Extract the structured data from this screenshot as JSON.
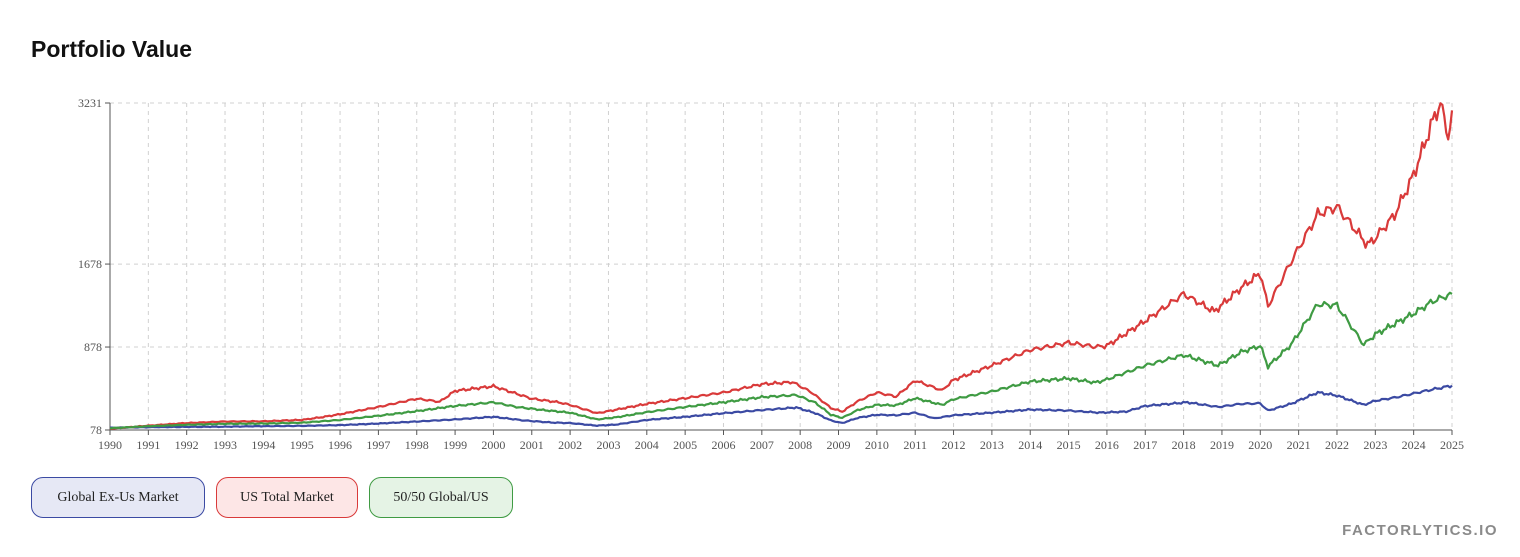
{
  "title": "Portfolio Value",
  "brand": "FACTORLYTICS.IO",
  "colors": {
    "grid": "#d0d0d0",
    "axis": "#555555"
  },
  "legend": [
    {
      "label": "Global Ex-Us Market",
      "border": "#3b4aa3",
      "fill": "#e6e8f5"
    },
    {
      "label": "US Total Market",
      "border": "#d93a3a",
      "fill": "#fde6e6"
    },
    {
      "label": "50/50 Global/US",
      "border": "#3f9b43",
      "fill": "#e5f3e5"
    }
  ],
  "chart_data": {
    "type": "line",
    "title": "Portfolio Value",
    "xlabel": "",
    "ylabel": "",
    "xlim": [
      1990,
      2025
    ],
    "ylim": [
      78,
      3231
    ],
    "grid": true,
    "legend_position": "bottom-left",
    "x_ticks": [
      "1990",
      "1991",
      "1992",
      "1993",
      "1994",
      "1995",
      "1996",
      "1997",
      "1998",
      "1999",
      "2000",
      "2001",
      "2002",
      "2003",
      "2004",
      "2005",
      "2006",
      "2007",
      "2008",
      "2009",
      "2010",
      "2011",
      "2012",
      "2013",
      "2014",
      "2015",
      "2016",
      "2017",
      "2018",
      "2019",
      "2020",
      "2021",
      "2022",
      "2023",
      "2024",
      "2025"
    ],
    "y_ticks": [
      78,
      878,
      1678,
      3231
    ],
    "series": [
      {
        "name": "Global Ex-Us Market",
        "color": "#3b4aa3",
        "points": [
          [
            1990,
            100
          ],
          [
            1991,
            105
          ],
          [
            1992,
            108
          ],
          [
            1993,
            110
          ],
          [
            1994,
            115
          ],
          [
            1995,
            118
          ],
          [
            1996,
            125
          ],
          [
            1997,
            140
          ],
          [
            1998,
            160
          ],
          [
            1999,
            180
          ],
          [
            2000,
            205
          ],
          [
            2000.8,
            170
          ],
          [
            2001.5,
            150
          ],
          [
            2002,
            145
          ],
          [
            2002.7,
            120
          ],
          [
            2003.2,
            130
          ],
          [
            2004,
            175
          ],
          [
            2005,
            205
          ],
          [
            2006,
            240
          ],
          [
            2007,
            270
          ],
          [
            2007.9,
            295
          ],
          [
            2008.4,
            240
          ],
          [
            2008.8,
            170
          ],
          [
            2009.1,
            145
          ],
          [
            2009.5,
            195
          ],
          [
            2010,
            225
          ],
          [
            2010.5,
            220
          ],
          [
            2011,
            245
          ],
          [
            2011.5,
            190
          ],
          [
            2012,
            220
          ],
          [
            2013,
            245
          ],
          [
            2014,
            275
          ],
          [
            2015,
            265
          ],
          [
            2015.8,
            245
          ],
          [
            2016.5,
            255
          ],
          [
            2017,
            310
          ],
          [
            2018.1,
            345
          ],
          [
            2018.9,
            300
          ],
          [
            2019.5,
            330
          ],
          [
            2020,
            335
          ],
          [
            2020.2,
            265
          ],
          [
            2020.8,
            330
          ],
          [
            2021.5,
            440
          ],
          [
            2022,
            410
          ],
          [
            2022.7,
            320
          ],
          [
            2023,
            360
          ],
          [
            2023.5,
            390
          ],
          [
            2024,
            430
          ],
          [
            2024.5,
            470
          ],
          [
            2025,
            505
          ]
        ]
      },
      {
        "name": "US Total Market",
        "color": "#d93a3a",
        "points": [
          [
            1990,
            90
          ],
          [
            1991,
            120
          ],
          [
            1992,
            145
          ],
          [
            1993,
            160
          ],
          [
            1994,
            162
          ],
          [
            1995,
            175
          ],
          [
            1995.5,
            200
          ],
          [
            1996,
            230
          ],
          [
            1997,
            300
          ],
          [
            1998,
            380
          ],
          [
            1998.6,
            350
          ],
          [
            1999,
            455
          ],
          [
            2000,
            500
          ],
          [
            2000.5,
            440
          ],
          [
            2001,
            380
          ],
          [
            2001.7,
            345
          ],
          [
            2002,
            320
          ],
          [
            2002.7,
            240
          ],
          [
            2003,
            260
          ],
          [
            2004,
            330
          ],
          [
            2005,
            385
          ],
          [
            2006,
            440
          ],
          [
            2007,
            520
          ],
          [
            2007.8,
            540
          ],
          [
            2008.3,
            440
          ],
          [
            2008.8,
            290
          ],
          [
            2009.1,
            255
          ],
          [
            2009.5,
            355
          ],
          [
            2010,
            440
          ],
          [
            2010.5,
            400
          ],
          [
            2011,
            555
          ],
          [
            2011.7,
            460
          ],
          [
            2012,
            560
          ],
          [
            2013,
            700
          ],
          [
            2014,
            850
          ],
          [
            2015,
            920
          ],
          [
            2015.7,
            880
          ],
          [
            2016,
            890
          ],
          [
            2017,
            1130
          ],
          [
            2018,
            1390
          ],
          [
            2018.8,
            1220
          ],
          [
            2019.5,
            1450
          ],
          [
            2020,
            1590
          ],
          [
            2020.2,
            1270
          ],
          [
            2020.8,
            1700
          ],
          [
            2021.5,
            2160
          ],
          [
            2022,
            2230
          ],
          [
            2022.8,
            1860
          ],
          [
            2023,
            1930
          ],
          [
            2023.5,
            2150
          ],
          [
            2024,
            2540
          ],
          [
            2024.5,
            3060
          ],
          [
            2024.7,
            3231
          ],
          [
            2024.9,
            2910
          ],
          [
            2025,
            3160
          ]
        ]
      },
      {
        "name": "50/50 Global/US",
        "color": "#3f9b43",
        "points": [
          [
            1990,
            95
          ],
          [
            1991,
            115
          ],
          [
            1992,
            128
          ],
          [
            1993,
            138
          ],
          [
            1994,
            140
          ],
          [
            1995,
            148
          ],
          [
            1996,
            175
          ],
          [
            1997,
            215
          ],
          [
            1998,
            260
          ],
          [
            1999,
            310
          ],
          [
            2000,
            345
          ],
          [
            2000.6,
            300
          ],
          [
            2001.3,
            270
          ],
          [
            2002,
            245
          ],
          [
            2002.7,
            180
          ],
          [
            2003.2,
            200
          ],
          [
            2004,
            250
          ],
          [
            2005,
            300
          ],
          [
            2006,
            345
          ],
          [
            2007,
            395
          ],
          [
            2007.9,
            415
          ],
          [
            2008.4,
            340
          ],
          [
            2008.8,
            225
          ],
          [
            2009.1,
            195
          ],
          [
            2009.5,
            270
          ],
          [
            2010,
            320
          ],
          [
            2010.5,
            315
          ],
          [
            2011,
            385
          ],
          [
            2011.7,
            320
          ],
          [
            2012,
            375
          ],
          [
            2013,
            450
          ],
          [
            2014,
            545
          ],
          [
            2015,
            575
          ],
          [
            2015.7,
            535
          ],
          [
            2016,
            565
          ],
          [
            2017,
            700
          ],
          [
            2018,
            800
          ],
          [
            2018.9,
            700
          ],
          [
            2019.5,
            830
          ],
          [
            2020,
            890
          ],
          [
            2020.2,
            690
          ],
          [
            2020.8,
            900
          ],
          [
            2021.5,
            1290
          ],
          [
            2022,
            1280
          ],
          [
            2022.7,
            900
          ],
          [
            2023,
            1000
          ],
          [
            2023.5,
            1100
          ],
          [
            2024,
            1200
          ],
          [
            2024.5,
            1320
          ],
          [
            2025,
            1390
          ]
        ]
      }
    ]
  }
}
